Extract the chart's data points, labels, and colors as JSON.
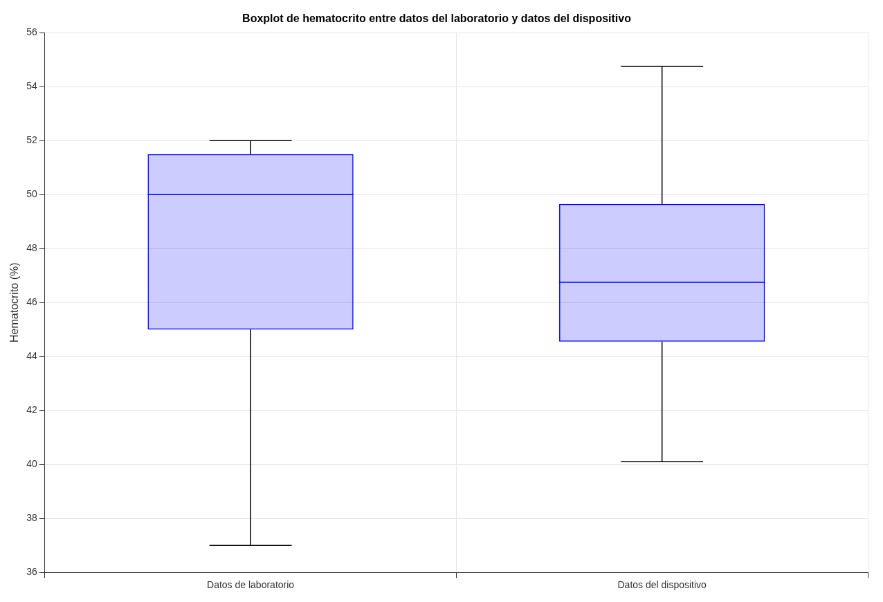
{
  "chart_data": {
    "type": "box",
    "title": "Boxplot de hematocrito entre datos del laboratorio y datos del dispositivo",
    "ylabel": "Hematocrito (%)",
    "categories": [
      "Datos de laboratorio",
      "Datos del dispositivo"
    ],
    "boxes": [
      {
        "low": 37,
        "q1": 45,
        "median": 50,
        "q3": 51.5,
        "high": 52
      },
      {
        "low": 40.1,
        "q1": 44.55,
        "median": 46.75,
        "q3": 49.65,
        "high": 54.75
      }
    ],
    "color": "#0000ff",
    "ylim": [
      36,
      56
    ],
    "yticks": [
      36,
      38,
      40,
      42,
      44,
      46,
      48,
      50,
      52,
      54,
      56
    ],
    "grid": true
  }
}
